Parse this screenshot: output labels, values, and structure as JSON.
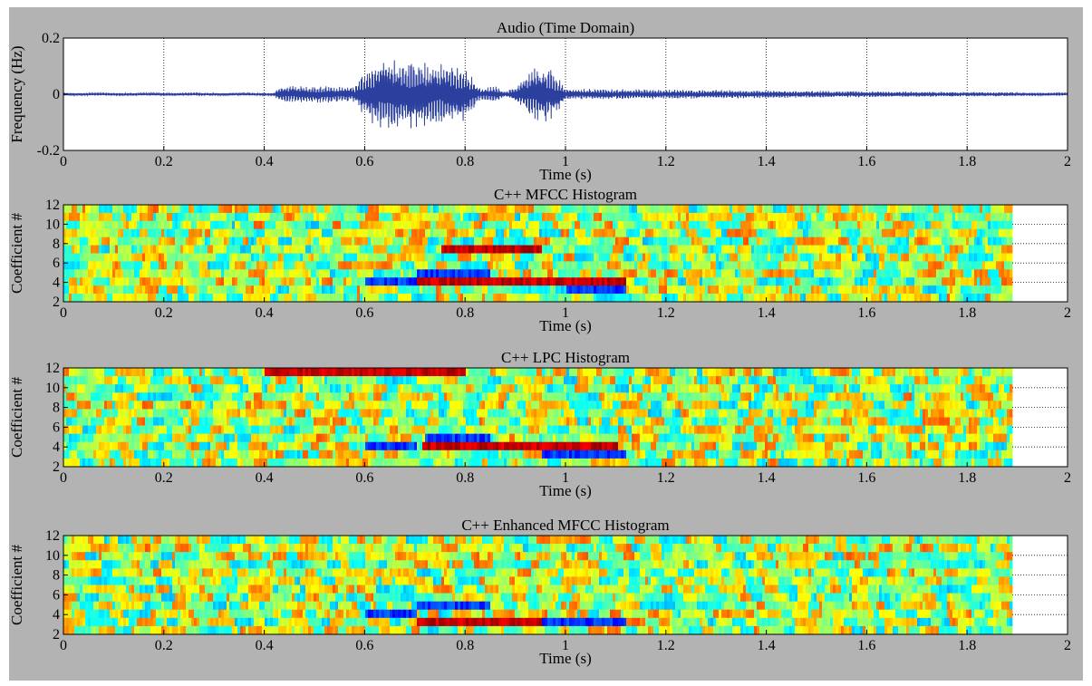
{
  "chart_data": [
    {
      "type": "line",
      "title": "Audio (Time Domain)",
      "xlabel": "Time (s)",
      "ylabel": "Frequency (Hz)",
      "xlim": [
        0,
        2
      ],
      "ylim": [
        -0.2,
        0.2
      ],
      "x_ticks": [
        "0",
        "0.2",
        "0.4",
        "0.6",
        "0.8",
        "1",
        "1.2",
        "1.4",
        "1.6",
        "1.8",
        "2"
      ],
      "y_ticks": [
        "0.2",
        "0",
        "-0.2"
      ],
      "grid": true,
      "line_color": "#2b3f9e",
      "series": [
        {
          "x": [
            0,
            0.42,
            0.43,
            0.58,
            0.6,
            0.64,
            0.7,
            0.76,
            0.8,
            0.83,
            0.86,
            0.88,
            0.9,
            0.94,
            0.96,
            0.98,
            1.0,
            2.0
          ],
          "y": [
            0.005,
            0.005,
            0.03,
            0.03,
            0.09,
            0.14,
            0.12,
            0.11,
            0.1,
            0.02,
            0.03,
            0.01,
            0.03,
            0.1,
            0.11,
            0.08,
            0.02,
            0.005
          ]
        }
      ]
    },
    {
      "type": "heatmap",
      "title": "C++  MFCC Histogram",
      "xlabel": "Time (s)",
      "ylabel": "Coefficient #",
      "xlim": [
        0,
        2
      ],
      "ylim": [
        2,
        12
      ],
      "x_ticks": [
        "0",
        "0.2",
        "0.4",
        "0.6",
        "0.8",
        "1",
        "1.2",
        "1.4",
        "1.6",
        "1.8",
        "2"
      ],
      "y_ticks": [
        "12",
        "10",
        "8",
        "6",
        "4",
        "2"
      ],
      "data_xmax": 1.89,
      "rows": 12,
      "colormap": "jet",
      "notable_regions": [
        {
          "t0": 0.7,
          "t1": 1.12,
          "coef": 3,
          "level": "high"
        },
        {
          "t0": 0.7,
          "t1": 0.85,
          "coef": 4,
          "level": "low"
        },
        {
          "t0": 0.6,
          "t1": 0.7,
          "coef": 3,
          "level": "low"
        },
        {
          "t0": 1.0,
          "t1": 1.12,
          "coef": 2,
          "level": "low"
        },
        {
          "t0": 0.75,
          "t1": 0.95,
          "coef": 7,
          "level": "high"
        }
      ]
    },
    {
      "type": "heatmap",
      "title": "C++ LPC  Histogram",
      "xlabel": "Time (s)",
      "ylabel": "Coefficient #",
      "xlim": [
        0,
        2
      ],
      "ylim": [
        2,
        12
      ],
      "x_ticks": [
        "0",
        "0.2",
        "0.4",
        "0.6",
        "0.8",
        "1",
        "1.2",
        "1.4",
        "1.6",
        "1.8",
        "2"
      ],
      "y_ticks": [
        "12",
        "10",
        "8",
        "6",
        "4",
        "2"
      ],
      "data_xmax": 1.89,
      "rows": 12,
      "colormap": "jet",
      "notable_regions": [
        {
          "t0": 0.71,
          "t1": 1.1,
          "coef": 3,
          "level": "high"
        },
        {
          "t0": 0.6,
          "t1": 0.7,
          "coef": 3,
          "level": "low"
        },
        {
          "t0": 0.95,
          "t1": 1.12,
          "coef": 2,
          "level": "low"
        },
        {
          "t0": 0.72,
          "t1": 0.85,
          "coef": 4,
          "level": "low"
        },
        {
          "t0": 0.4,
          "t1": 0.8,
          "coef": 12,
          "level": "high"
        }
      ]
    },
    {
      "type": "heatmap",
      "title": "C++ Enhanced MFCC  Histogram",
      "xlabel": "Time (s)",
      "ylabel": "Coefficient #",
      "xlim": [
        0,
        2
      ],
      "ylim": [
        2,
        12
      ],
      "x_ticks": [
        "0",
        "0.2",
        "0.4",
        "0.6",
        "0.8",
        "1",
        "1.2",
        "1.4",
        "1.6",
        "1.8",
        "2"
      ],
      "y_ticks": [
        "12",
        "10",
        "8",
        "6",
        "4",
        "2"
      ],
      "data_xmax": 1.89,
      "rows": 12,
      "colormap": "jet",
      "notable_regions": [
        {
          "t0": 0.7,
          "t1": 1.12,
          "coef": 2,
          "level": "high"
        },
        {
          "t0": 0.6,
          "t1": 0.7,
          "coef": 3,
          "level": "low"
        },
        {
          "t0": 0.95,
          "t1": 1.12,
          "coef": 2,
          "level": "low"
        },
        {
          "t0": 0.7,
          "t1": 0.85,
          "coef": 4,
          "level": "low"
        },
        {
          "t0": 0.82,
          "t1": 0.88,
          "coef": 2,
          "level": "high"
        }
      ]
    }
  ]
}
